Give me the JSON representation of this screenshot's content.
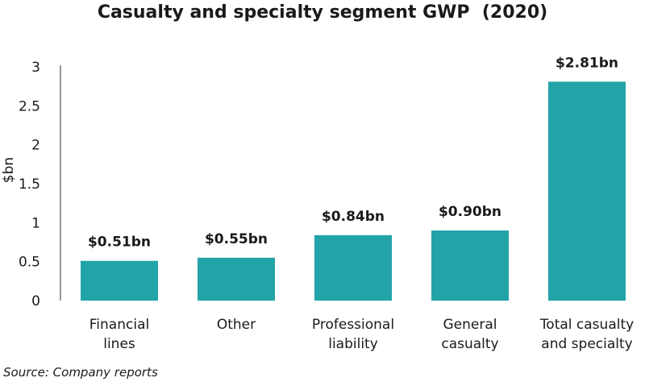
{
  "chart_data": {
    "type": "bar",
    "title": "Casualty and specialty segment GWP  (2020)",
    "xlabel": "",
    "ylabel": "$bn",
    "ylim": [
      0,
      3
    ],
    "yticks": [
      "0",
      "0.5",
      "1",
      "1.5",
      "2",
      "2.5",
      "3"
    ],
    "categories": [
      [
        "Financial",
        "lines"
      ],
      [
        "Other"
      ],
      [
        "Professional",
        "liability"
      ],
      [
        "General",
        "casualty"
      ],
      [
        "Total casualty",
        "and specialty"
      ]
    ],
    "values": [
      0.51,
      0.55,
      0.84,
      0.9,
      2.81
    ],
    "data_labels": [
      "$0.51bn",
      "$0.55bn",
      "$0.84bn",
      "$0.90bn",
      "$2.81bn"
    ],
    "bar_color": "#22a3a8",
    "grid": false,
    "legend": "none"
  },
  "source": "Source: Company reports"
}
